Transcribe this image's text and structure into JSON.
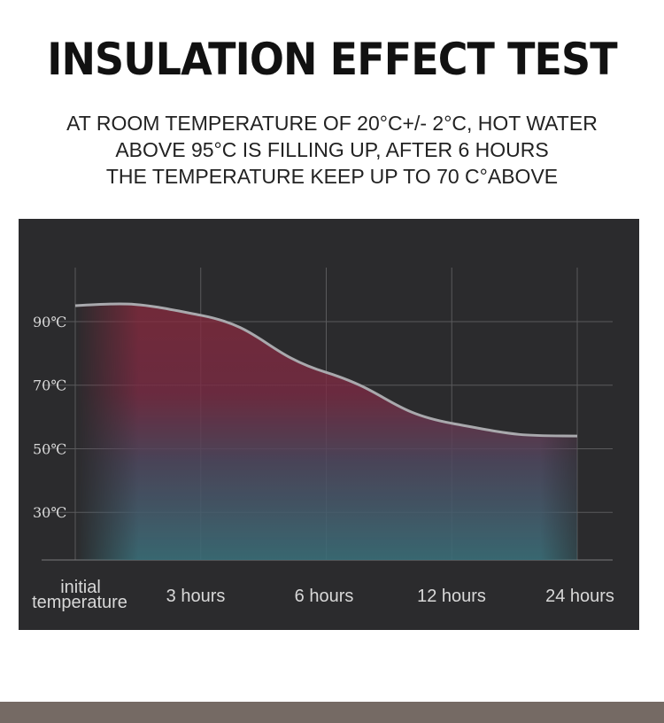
{
  "title": "INSULATION EFFECT TEST",
  "subtitle_lines": [
    "AT ROOM TEMPERATURE OF 20°C+/- 2°C, HOT WATER",
    "ABOVE 95°C IS FILLING UP, AFTER 6 HOURS",
    "THE TEMPERATURE KEEP UP TO 70 C°ABOVE"
  ],
  "chart_data": {
    "type": "area",
    "categories": [
      "initial temperature",
      "3 hours",
      "6 hours",
      "12 hours",
      "24 hours"
    ],
    "category_lines": [
      [
        "initial",
        "temperature"
      ],
      [
        "3 hours"
      ],
      [
        "6 hours"
      ],
      [
        "12 hours"
      ],
      [
        "24 hours"
      ]
    ],
    "x": [
      0,
      1,
      2,
      3,
      4
    ],
    "values": [
      95,
      92,
      74,
      58,
      54
    ],
    "y_ticks": [
      30,
      50,
      70,
      90
    ],
    "y_tick_labels": [
      "30℃",
      "50℃",
      "70℃",
      "90℃"
    ],
    "ylim": [
      15,
      107
    ],
    "title": "",
    "xlabel": "",
    "ylabel": "",
    "grid": true,
    "colors": {
      "background": "#2b2b2d",
      "grid": "#5a5a5c",
      "line": "#a9a9ad",
      "fill_top": "#8a2a3e",
      "fill_bottom": "#3a6e78",
      "tick_label": "#d8d8d8"
    }
  }
}
